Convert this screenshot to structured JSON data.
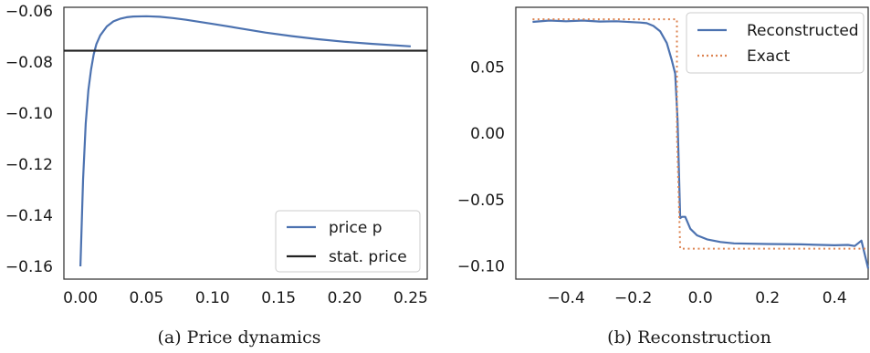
{
  "chart_data": [
    {
      "type": "line",
      "caption": "(a) Price dynamics",
      "xlim": [
        -0.0125,
        0.2625
      ],
      "ylim": [
        -0.165,
        -0.0585
      ],
      "xticks": [
        "0.00",
        "0.05",
        "0.10",
        "0.15",
        "0.20",
        "0.25"
      ],
      "yticks": [
        "−0.06",
        "−0.08",
        "−0.10",
        "−0.12",
        "−0.14",
        "−0.16"
      ],
      "grid": false,
      "legend_position": "bottom-right",
      "series": [
        {
          "name": "price p",
          "color": "#4c72b0",
          "style": "solid",
          "x": [
            0.0,
            0.002,
            0.004,
            0.006,
            0.008,
            0.01,
            0.012,
            0.015,
            0.02,
            0.025,
            0.03,
            0.035,
            0.04,
            0.05,
            0.06,
            0.07,
            0.08,
            0.09,
            0.1,
            0.12,
            0.14,
            0.16,
            0.18,
            0.2,
            0.22,
            0.25
          ],
          "y": [
            -0.16,
            -0.126,
            -0.104,
            -0.091,
            -0.083,
            -0.077,
            -0.073,
            -0.0695,
            -0.066,
            -0.064,
            -0.063,
            -0.0624,
            -0.0621,
            -0.062,
            -0.0622,
            -0.0627,
            -0.0634,
            -0.0642,
            -0.065,
            -0.0667,
            -0.0684,
            -0.0698,
            -0.071,
            -0.072,
            -0.0728,
            -0.0738
          ]
        },
        {
          "name": "stat. price",
          "color": "#222222",
          "style": "solid",
          "hline": -0.0755
        }
      ]
    },
    {
      "type": "line",
      "caption": "(b) Reconstruction",
      "xlim": [
        -0.55,
        0.5
      ],
      "ylim": [
        -0.11,
        0.095
      ],
      "xticks": [
        "−0.4",
        "−0.2",
        "0.0",
        "0.2",
        "0.4"
      ],
      "yticks": [
        "0.05",
        "0.00",
        "−0.05",
        "−0.10"
      ],
      "grid": false,
      "legend_position": "top-right",
      "series": [
        {
          "name": "Reconstructed",
          "color": "#4c72b0",
          "style": "solid",
          "x": [
            -0.5,
            -0.45,
            -0.4,
            -0.35,
            -0.3,
            -0.25,
            -0.2,
            -0.18,
            -0.16,
            -0.14,
            -0.12,
            -0.1,
            -0.085,
            -0.075,
            -0.068,
            -0.06,
            -0.055,
            -0.045,
            -0.03,
            -0.01,
            0.02,
            0.06,
            0.1,
            0.2,
            0.3,
            0.4,
            0.44,
            0.46,
            0.48,
            0.5
          ],
          "y": [
            0.084,
            0.085,
            0.0845,
            0.085,
            0.0843,
            0.0845,
            0.0838,
            0.0835,
            0.083,
            0.081,
            0.077,
            0.068,
            0.055,
            0.045,
            0.01,
            -0.064,
            -0.063,
            -0.063,
            -0.072,
            -0.077,
            -0.08,
            -0.082,
            -0.083,
            -0.0835,
            -0.0838,
            -0.0845,
            -0.0842,
            -0.085,
            -0.081,
            -0.102
          ]
        },
        {
          "name": "Exact",
          "color": "#dd8452",
          "style": "dotted",
          "x": [
            -0.5,
            -0.07,
            -0.07,
            -0.06,
            0.5
          ],
          "y": [
            0.086,
            0.086,
            0.0,
            -0.087,
            -0.087
          ]
        }
      ]
    }
  ]
}
